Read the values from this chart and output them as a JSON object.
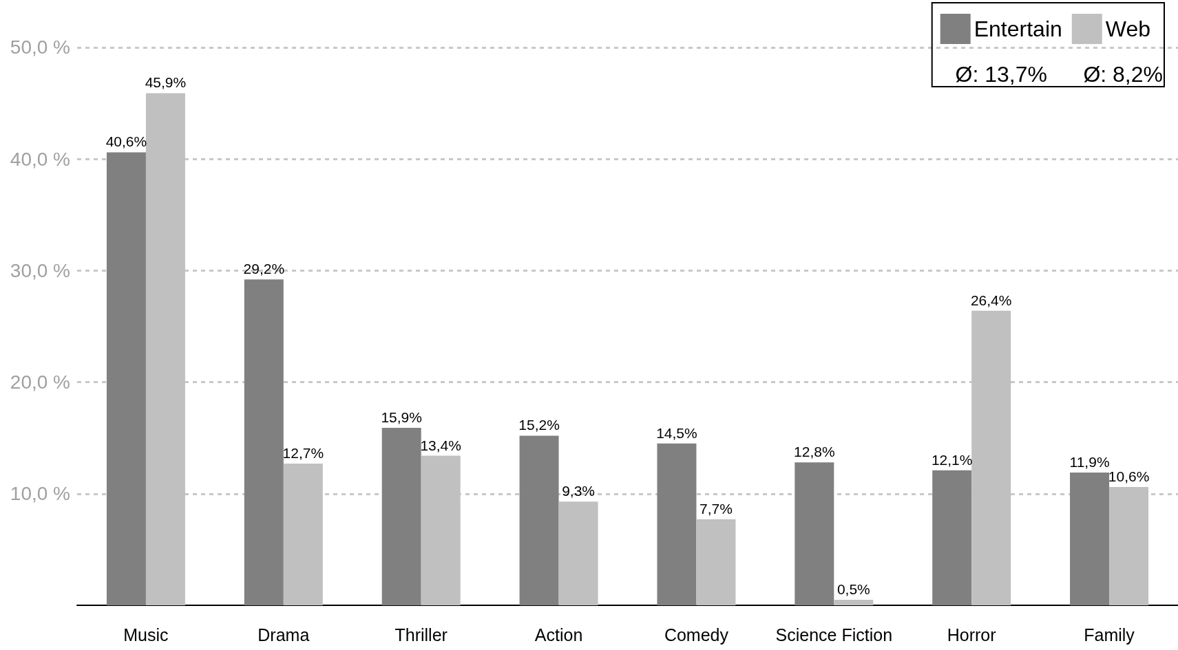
{
  "chart_data": {
    "type": "bar",
    "categories": [
      "Music",
      "Drama",
      "Thriller",
      "Action",
      "Comedy",
      "Science Fiction",
      "Horror",
      "Family"
    ],
    "series": [
      {
        "name": "Entertain",
        "color": "#808080",
        "values": [
          40.6,
          29.2,
          15.9,
          15.2,
          14.5,
          12.8,
          12.1,
          11.9
        ],
        "value_labels": [
          "40,6%",
          "29,2%",
          "15,9%",
          "15,2%",
          "14,5%",
          "12,8%",
          "12,1%",
          "11,9%"
        ]
      },
      {
        "name": "Web",
        "color": "#c0c0c0",
        "values": [
          45.9,
          12.7,
          13.4,
          9.3,
          7.7,
          0.5,
          26.4,
          10.6
        ],
        "value_labels": [
          "45,9%",
          "12,7%",
          "13,4%",
          "9,3%",
          "7,7%",
          "0,5%",
          "26,4%",
          "10,6%"
        ]
      }
    ],
    "ylim": [
      0,
      54
    ],
    "yticks": [
      {
        "value": 10,
        "label": "10,0 %"
      },
      {
        "value": 20,
        "label": "20,0 %"
      },
      {
        "value": 30,
        "label": "30,0 %"
      },
      {
        "value": 40,
        "label": "40,0 %"
      },
      {
        "value": 50,
        "label": "50,0 %"
      }
    ],
    "grid": "y",
    "legend": "top right",
    "annotations": [
      "Ø: 13,7%",
      "Ø: 8,2%"
    ]
  }
}
